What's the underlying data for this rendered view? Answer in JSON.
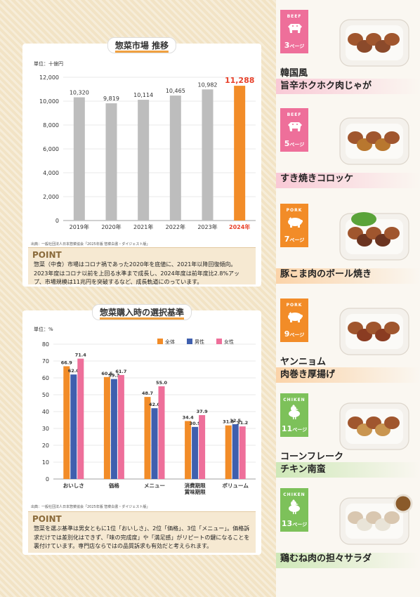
{
  "market": {
    "title": "惣菜市場 推移",
    "unit": "単位：十億円",
    "source": "出典：一般社団法人日本惣菜協会「2025年版 惣菜白書・ダイジェスト版」",
    "point_label": "POINT",
    "point_text": "惣菜（中食）市場はコロナ禍であった2020年を底値に、2021年以降回復傾向。2023年度はコロナ以前を上回る水準まで成長し、2024年度は前年度比2.8%アップ、市場規模は11兆円を突破するなど、成長軌道にのっています。"
  },
  "preference": {
    "title": "惣菜購入時の選択基準",
    "unit": "単位：%",
    "source": "出典：一般社団法人日本惣菜協会「2025年版 惣菜白書・ダイジェスト版」",
    "point_label": "POINT",
    "point_text": "惣菜を選ぶ基準は男女ともに1位「おいしさ」、2位「価格」、3位「メニュー」。価格訴求だけでは差別化はできず、「味の完成度」や「満足感」がリピートの鍵になることを裏付けています。専門店ならではの品質訴求も有効だと考えられます。"
  },
  "chart_data": [
    {
      "type": "bar",
      "title": "惣菜市場 推移",
      "ylabel": "単位：十億円",
      "categories": [
        "2019年",
        "2020年",
        "2021年",
        "2022年",
        "2023年",
        "2024年"
      ],
      "values": [
        10320,
        9819,
        10114,
        10465,
        10982,
        11288
      ],
      "value_labels": [
        "10,320",
        "9,819",
        "10,114",
        "10,465",
        "10,982",
        "11,288"
      ],
      "highlight_index": 5,
      "ylim": [
        0,
        12000
      ],
      "yticks": [
        0,
        2000,
        4000,
        6000,
        8000,
        10000,
        12000
      ],
      "ytick_labels": [
        "0",
        "2,000",
        "4,000",
        "6,000",
        "8,000",
        "10,000",
        "12,000"
      ],
      "colors": {
        "bar": "#bdbdbd",
        "highlight": "#f28c28",
        "highlight_text": "#e8412a"
      },
      "grid": true
    },
    {
      "type": "bar",
      "title": "惣菜購入時の選択基準",
      "ylabel": "単位：%",
      "categories": [
        "おいしさ",
        "価格",
        "メニュー",
        "消費期限\n賞味期限",
        "ボリューム"
      ],
      "series": [
        {
          "name": "全体",
          "color": "#f28c28",
          "values": [
            66.9,
            60.5,
            48.7,
            34.4,
            31.8
          ]
        },
        {
          "name": "男性",
          "color": "#3f5fae",
          "values": [
            62.0,
            59.3,
            42.0,
            30.9,
            32.5
          ]
        },
        {
          "name": "女性",
          "color": "#ee6f9a",
          "values": [
            71.4,
            61.7,
            55.0,
            37.9,
            31.2
          ]
        }
      ],
      "ylim": [
        0,
        80
      ],
      "yticks": [
        0,
        10,
        20,
        30,
        40,
        50,
        60,
        70,
        80
      ],
      "legend": "top-right",
      "grid": true
    }
  ],
  "products": [
    {
      "category": "BEEF",
      "page": "3",
      "page_suffix": "ページ",
      "name_lines": [
        "韓国風",
        "旨辛ホクホク肉じゃが"
      ],
      "icon": "cow-icon",
      "color": "#ee6f9a",
      "band": "#f9c9d6"
    },
    {
      "category": "BEEF",
      "page": "5",
      "page_suffix": "ページ",
      "name_lines": [
        "すき焼きコロッケ"
      ],
      "icon": "cow-icon",
      "color": "#ee6f9a",
      "band": "#f9c9d6"
    },
    {
      "category": "PORK",
      "page": "7",
      "page_suffix": "ページ",
      "name_lines": [
        "豚こま肉のボール焼き"
      ],
      "icon": "pig-icon",
      "color": "#f28c28",
      "band": "#fbd3a8"
    },
    {
      "category": "PORK",
      "page": "9",
      "page_suffix": "ページ",
      "name_lines": [
        "ヤンニョム",
        "肉巻き厚揚げ"
      ],
      "icon": "pig-icon",
      "color": "#f28c28",
      "band": "#fbd3a8"
    },
    {
      "category": "CHIKEN",
      "page": "11",
      "page_suffix": "ページ",
      "name_lines": [
        "コーンフレーク",
        "チキン南蛮"
      ],
      "icon": "chicken-icon",
      "color": "#7dc15a",
      "band": "#cfe8b8"
    },
    {
      "category": "CHIKEN",
      "page": "13",
      "page_suffix": "ページ",
      "name_lines": [
        "鶏むね肉の担々サラダ"
      ],
      "icon": "chicken-icon",
      "color": "#7dc15a",
      "band": "#cfe8b8"
    }
  ]
}
